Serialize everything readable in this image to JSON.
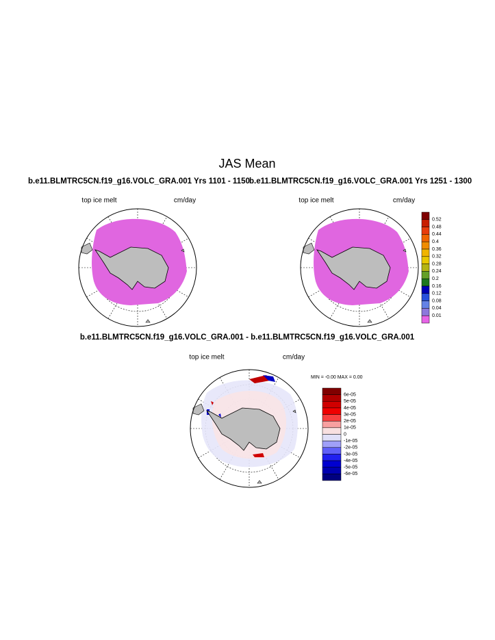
{
  "title": "JAS Mean",
  "panels": [
    {
      "title": "b.e11.BLMTRC5CN.f19_g16.VOLC_GRA.001  Yrs 1101 - 1150",
      "left_label": "top ice melt",
      "right_label": "cm/day"
    },
    {
      "title": "b.e11.BLMTRC5CN.f19_g16.VOLC_GRA.001  Yrs 1251 - 1300",
      "left_label": "top ice melt",
      "right_label": "cm/day"
    },
    {
      "title": "b.e11.BLMTRC5CN.f19_g16.VOLC_GRA.001 - b.e11.BLMTRC5CN.f19_g16.VOLC_GRA.001",
      "left_label": "top ice melt",
      "right_label": "cm/day",
      "stats": "MIN =  -0.00 MAX =   0.00"
    }
  ],
  "colorbars": [
    {
      "labels": [
        "0.52",
        "0.48",
        "0.44",
        "0.4",
        "0.36",
        "0.32",
        "0.28",
        "0.24",
        "0.2",
        "0.16",
        "0.12",
        "0.08",
        "0.04",
        "0.01"
      ],
      "colors": [
        "#800000",
        "#c81e00",
        "#e83c0c",
        "#f06400",
        "#f08c00",
        "#f0b400",
        "#e8c800",
        "#b4b414",
        "#64a028",
        "#1e781e",
        "#0000b4",
        "#2850dc",
        "#6482e6",
        "#8c78dc",
        "#e664e6"
      ]
    },
    {
      "labels": [
        "6e-05",
        "5e-05",
        "4e-05",
        "3e-05",
        "2e-05",
        "1e-05",
        "0",
        "-1e-05",
        "-2e-05",
        "-3e-05",
        "-4e-05",
        "-5e-05",
        "-6e-05"
      ],
      "colors": [
        "#800000",
        "#b00000",
        "#d00000",
        "#f00000",
        "#f84040",
        "#f8a0a0",
        "#f8e0e0",
        "#e0e0f8",
        "#a0a0f8",
        "#6060f8",
        "#2020f0",
        "#0000d0",
        "#0000b0",
        "#000080"
      ]
    }
  ]
}
